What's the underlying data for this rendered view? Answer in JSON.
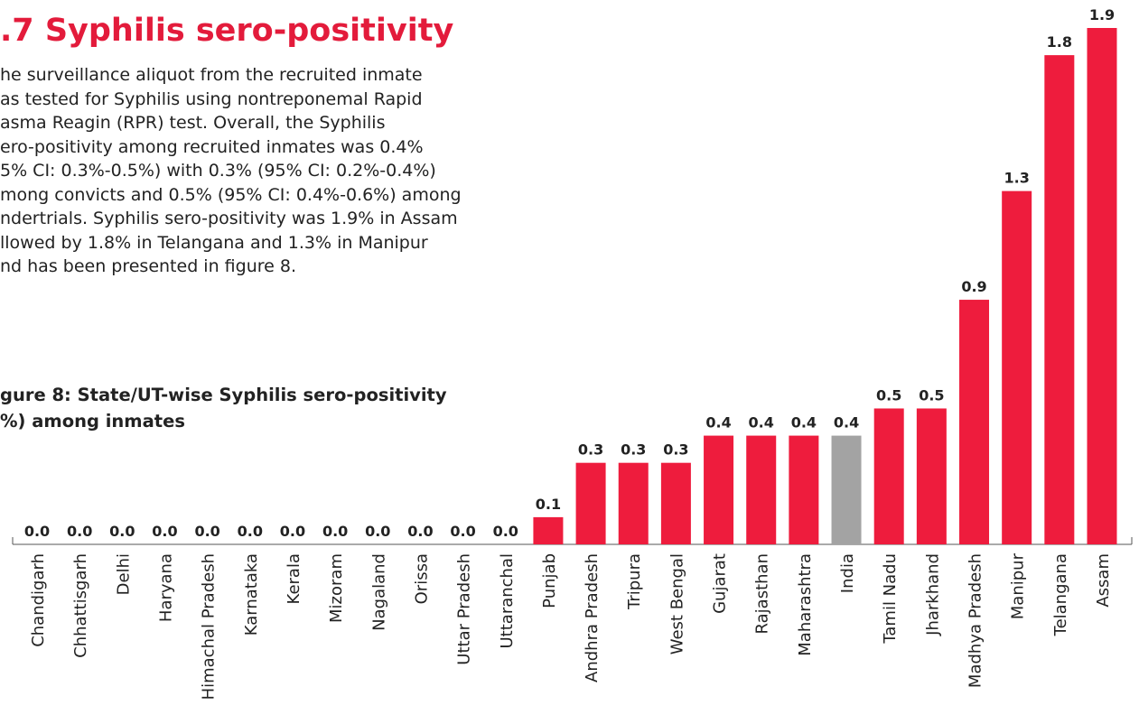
{
  "heading": ".7 Syphilis sero-positivity",
  "paragraph": {
    "lines": [
      "he surveillance aliquot from the recruited inmate",
      "as tested for Syphilis using nontreponemal Rapid",
      "asma Reagin (RPR) test. Overall, the Syphilis",
      "ero-positivity among recruited inmates was 0.4%",
      "5% CI: 0.3%-0.5%) with 0.3% (95% CI: 0.2%-0.4%)",
      "mong convicts and 0.5% (95% CI: 0.4%-0.6%) among",
      "ndertrials. Syphilis sero-positivity was 1.9% in Assam",
      "llowed by 1.8% in Telangana and 1.3% in Manipur",
      "nd has been presented in figure 8."
    ]
  },
  "caption": {
    "lines": [
      "gure 8: State/UT-wise Syphilis sero-positivity",
      "%) among inmates"
    ]
  },
  "chart_data": {
    "type": "bar",
    "categories": [
      "Chandigarh",
      "Chhattisgarh",
      "Delhi",
      "Haryana",
      "Himachal Pradesh",
      "Karnataka",
      "Kerala",
      "Mizoram",
      "Nagaland",
      "Orissa",
      "Uttar Pradesh",
      "Uttaranchal",
      "Punjab",
      "Andhra Pradesh",
      "Tripura",
      "West Bengal",
      "Gujarat",
      "Rajasthan",
      "Maharashtra",
      "India",
      "Tamil Nadu",
      "Jharkhand",
      "Madhya Pradesh",
      "Manipur",
      "Telangana",
      "Assam"
    ],
    "values": [
      0,
      0,
      0,
      0,
      0,
      0,
      0,
      0,
      0,
      0,
      0,
      0,
      0.1,
      0.3,
      0.3,
      0.3,
      0.4,
      0.4,
      0.4,
      0.4,
      0.5,
      0.5,
      0.9,
      1.3,
      1.8,
      1.9
    ],
    "value_labels": [
      "0.0",
      "0.0",
      "0.0",
      "0.0",
      "0.0",
      "0.0",
      "0.0",
      "0.0",
      "0.0",
      "0.0",
      "0.0",
      "0.0",
      "0.1",
      "0.3",
      "0.3",
      "0.3",
      "0.4",
      "0.4",
      "0.4",
      "0.4",
      "0.5",
      "0.5",
      "0.9",
      "1.3",
      "1.8",
      "1.9"
    ],
    "colors": [
      "#ee1c3d",
      "#ee1c3d",
      "#ee1c3d",
      "#ee1c3d",
      "#ee1c3d",
      "#ee1c3d",
      "#ee1c3d",
      "#ee1c3d",
      "#ee1c3d",
      "#ee1c3d",
      "#ee1c3d",
      "#ee1c3d",
      "#ee1c3d",
      "#ee1c3d",
      "#ee1c3d",
      "#ee1c3d",
      "#ee1c3d",
      "#ee1c3d",
      "#ee1c3d",
      "#a3a3a3",
      "#ee1c3d",
      "#ee1c3d",
      "#ee1c3d",
      "#ee1c3d",
      "#ee1c3d",
      "#ee1c3d"
    ]
  }
}
